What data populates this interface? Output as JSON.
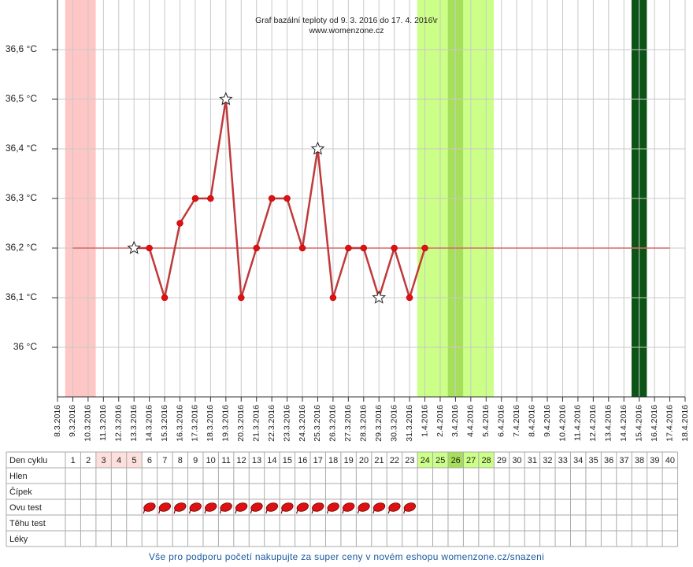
{
  "chart_data": {
    "type": "line",
    "title": "Graf bazální teploty od 9. 3. 2016 do 17. 4. 2016\\r",
    "subtitle": "www.womenzone.cz",
    "categories": [
      "8.3.2016",
      "9.3.2016",
      "10.3.2016",
      "11.3.2016",
      "12.3.2016",
      "13.3.2016",
      "14.3.2016",
      "15.3.2016",
      "16.3.2016",
      "17.3.2016",
      "18.3.2016",
      "19.3.2016",
      "20.3.2016",
      "21.3.2016",
      "22.3.2016",
      "23.3.2016",
      "24.3.2016",
      "25.3.2016",
      "26.3.2016",
      "27.3.2016",
      "28.3.2016",
      "29.3.2016",
      "30.3.2016",
      "31.3.2016",
      "1.4.2016",
      "2.4.2016",
      "3.4.2016",
      "4.4.2016",
      "5.4.2016",
      "6.4.2016",
      "7.4.2016",
      "8.4.2016",
      "9.4.2016",
      "10.4.2016",
      "11.4.2016",
      "12.4.2016",
      "13.4.2016",
      "14.4.2016",
      "15.4.2016",
      "16.4.2016",
      "17.4.2016",
      "18.4.2016"
    ],
    "values": [
      null,
      null,
      null,
      null,
      null,
      36.2,
      36.2,
      36.1,
      36.25,
      36.3,
      36.3,
      36.5,
      36.1,
      36.2,
      36.3,
      36.3,
      36.2,
      36.4,
      36.1,
      36.2,
      36.2,
      36.1,
      36.2,
      36.1,
      36.2,
      null,
      null,
      null,
      null,
      null,
      null,
      null,
      null,
      null,
      null,
      null,
      null,
      null,
      null,
      null,
      null,
      null
    ],
    "markers": [
      null,
      null,
      null,
      null,
      null,
      "star",
      "dot",
      "dot",
      "dot",
      "dot",
      "dot",
      "star",
      "dot",
      "dot",
      "dot",
      "dot",
      "dot",
      "star",
      "dot",
      "dot",
      "dot",
      "star",
      "dot",
      "dot",
      "dot",
      null,
      null,
      null,
      null,
      null,
      null,
      null,
      null,
      null,
      null,
      null,
      null,
      null,
      null,
      null,
      null,
      null
    ],
    "color": "#c0393b",
    "dot_color": "#dd1111",
    "coverline": {
      "value": 36.2,
      "from": "9.3.2016",
      "to": "17.4.2016",
      "color": "#d46a6a"
    },
    "bands": [
      {
        "from": "9.3.2016",
        "to": "10.3.2016",
        "color": "#ffc6c6"
      },
      {
        "from": "1.4.2016",
        "to": "5.4.2016",
        "color": "#ccff88"
      },
      {
        "from": "3.4.2016",
        "to": "3.4.2016",
        "color": "#a6e05a"
      },
      {
        "from": "15.4.2016",
        "to": "15.4.2016",
        "color": "#0b5416"
      }
    ],
    "ylim": [
      35.9,
      36.7
    ],
    "yticks": [
      {
        "value": 36,
        "label": "36 °C"
      },
      {
        "value": 36.1,
        "label": "36,1 °C"
      },
      {
        "value": 36.2,
        "label": "36,2 °C"
      },
      {
        "value": 36.3,
        "label": "36,3 °C"
      },
      {
        "value": 36.4,
        "label": "36,4 °C"
      },
      {
        "value": 36.5,
        "label": "36,5 °C"
      },
      {
        "value": 36.6,
        "label": "36,6 °C"
      }
    ],
    "grid": true
  },
  "table": {
    "row_labels": [
      "Den cyklu",
      "Hlen",
      "Čípek",
      "Ovu test",
      "Těhu test",
      "Léky"
    ],
    "cycle_days": [
      1,
      2,
      3,
      4,
      5,
      6,
      7,
      8,
      9,
      10,
      11,
      12,
      13,
      14,
      15,
      16,
      17,
      18,
      19,
      20,
      21,
      22,
      23,
      24,
      25,
      26,
      27,
      28,
      29,
      30,
      31,
      32,
      33,
      34,
      35,
      36,
      37,
      38,
      39,
      40
    ],
    "day_colors": [
      {
        "days": [
          3,
          4,
          5
        ],
        "color": "#fde0dc"
      },
      {
        "days": [
          24,
          25,
          26,
          27,
          28
        ],
        "color": "#ccff88"
      },
      {
        "days": [
          26
        ],
        "color": "#a6e05a"
      }
    ],
    "ovu_test_days": [
      6,
      7,
      8,
      9,
      10,
      11,
      12,
      13,
      14,
      15,
      16,
      17,
      18,
      19,
      20,
      21,
      22,
      23
    ],
    "ovu_color": "#dd1111"
  },
  "footer": "Vše pro podporu početí nakupujte za super ceny v novém eshopu womenzone.cz/snazeni"
}
